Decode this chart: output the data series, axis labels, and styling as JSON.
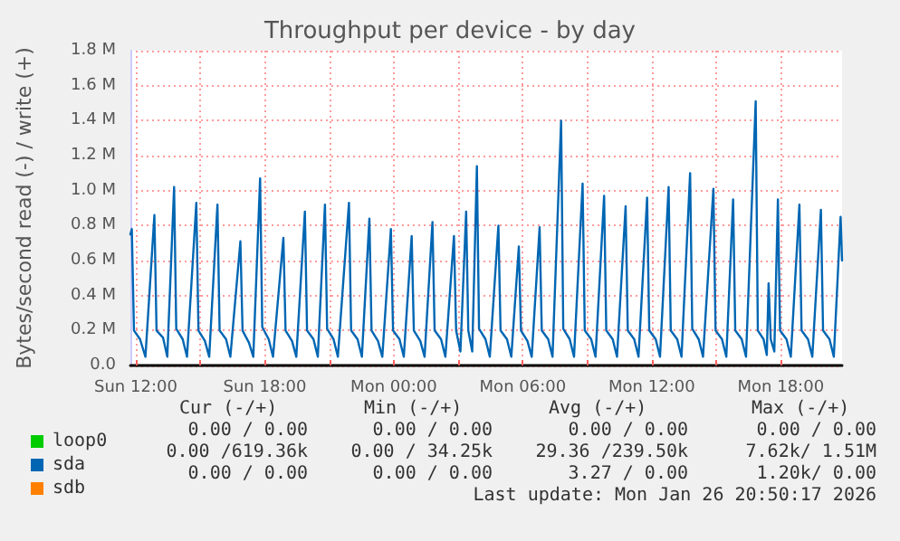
{
  "chart_data": {
    "type": "line",
    "title": "Throughput per device - by day",
    "ylabel": "Bytes/second read (-) / write (+)",
    "xlim": [
      "2026-01-25T11:45",
      "2026-01-26T20:51"
    ],
    "xticks": [
      {
        "value": "2026-01-25T12:00",
        "label": "Sun 12:00"
      },
      {
        "value": "2026-01-25T15:00",
        "label": null
      },
      {
        "value": "2026-01-25T18:00",
        "label": "Sun 18:00"
      },
      {
        "value": "2026-01-25T21:00",
        "label": null
      },
      {
        "value": "2026-01-26T00:00",
        "label": "Mon 00:00"
      },
      {
        "value": "2026-01-26T03:00",
        "label": null
      },
      {
        "value": "2026-01-26T06:00",
        "label": "Mon 06:00"
      },
      {
        "value": "2026-01-26T09:00",
        "label": null
      },
      {
        "value": "2026-01-26T12:00",
        "label": "Mon 12:00"
      },
      {
        "value": "2026-01-26T15:00",
        "label": null
      },
      {
        "value": "2026-01-26T18:00",
        "label": "Mon 18:00"
      }
    ],
    "ylim": [
      0,
      1800000
    ],
    "yticks": [
      {
        "value": 0,
        "label": "0.0"
      },
      {
        "value": 200000,
        "label": "0.2 M"
      },
      {
        "value": 400000,
        "label": "0.4 M"
      },
      {
        "value": 600000,
        "label": "0.6 M"
      },
      {
        "value": 800000,
        "label": "0.8 M"
      },
      {
        "value": 1000000,
        "label": "1.0 M"
      },
      {
        "value": 1200000,
        "label": "1.2 M"
      },
      {
        "value": 1400000,
        "label": "1.4 M"
      },
      {
        "value": 1600000,
        "label": "1.6 M"
      },
      {
        "value": 1800000,
        "label": "1.8 M"
      }
    ],
    "grid": true,
    "legend": "bottom",
    "marker": "none",
    "line_style": "solid",
    "series": [
      {
        "name": "loop0",
        "color": "#00cc00"
      },
      {
        "name": "sda",
        "color": "#0066b3",
        "x": [
          "2026-01-25T11:45",
          "2026-01-25T11:49",
          "2026-01-25T11:55",
          "2026-01-25T12:12",
          "2026-01-25T12:27",
          "2026-01-25T12:52",
          "2026-01-25T12:58",
          "2026-01-25T13:16",
          "2026-01-25T13:28",
          "2026-01-25T13:47",
          "2026-01-25T13:53",
          "2026-01-25T14:11",
          "2026-01-25T14:23",
          "2026-01-25T14:49",
          "2026-01-25T14:55",
          "2026-01-25T15:13",
          "2026-01-25T15:25",
          "2026-01-25T15:48",
          "2026-01-25T15:54",
          "2026-01-25T16:12",
          "2026-01-25T16:24",
          "2026-01-25T16:52",
          "2026-01-25T16:58",
          "2026-01-25T17:16",
          "2026-01-25T17:28",
          "2026-01-25T17:47",
          "2026-01-25T17:53",
          "2026-01-25T18:11",
          "2026-01-25T18:23",
          "2026-01-25T18:52",
          "2026-01-25T18:58",
          "2026-01-25T19:16",
          "2026-01-25T19:28",
          "2026-01-25T19:52",
          "2026-01-25T19:58",
          "2026-01-25T20:16",
          "2026-01-25T20:28",
          "2026-01-25T20:48",
          "2026-01-25T20:54",
          "2026-01-25T21:12",
          "2026-01-25T21:24",
          "2026-01-25T21:55",
          "2026-01-25T22:01",
          "2026-01-25T22:19",
          "2026-01-25T22:31",
          "2026-01-25T22:52",
          "2026-01-25T22:58",
          "2026-01-25T23:16",
          "2026-01-25T23:28",
          "2026-01-25T23:52",
          "2026-01-25T23:58",
          "2026-01-26T00:16",
          "2026-01-26T00:28",
          "2026-01-26T00:50",
          "2026-01-26T00:56",
          "2026-01-26T01:14",
          "2026-01-26T01:26",
          "2026-01-26T01:48",
          "2026-01-26T01:54",
          "2026-01-26T02:12",
          "2026-01-26T02:24",
          "2026-01-26T02:48",
          "2026-01-26T02:54",
          "2026-01-26T03:06",
          "2026-01-26T03:22",
          "2026-01-26T03:28",
          "2026-01-26T03:39",
          "2026-01-26T03:52",
          "2026-01-26T03:58",
          "2026-01-26T04:16",
          "2026-01-26T04:28",
          "2026-01-26T04:52",
          "2026-01-26T04:58",
          "2026-01-26T05:16",
          "2026-01-26T05:28",
          "2026-01-26T05:49",
          "2026-01-26T05:55",
          "2026-01-26T06:13",
          "2026-01-26T06:25",
          "2026-01-26T06:47",
          "2026-01-26T06:53",
          "2026-01-26T07:11",
          "2026-01-26T07:23",
          "2026-01-26T07:47",
          "2026-01-26T07:53",
          "2026-01-26T08:11",
          "2026-01-26T08:23",
          "2026-01-26T08:47",
          "2026-01-26T08:53",
          "2026-01-26T09:11",
          "2026-01-26T09:23",
          "2026-01-26T09:47",
          "2026-01-26T09:53",
          "2026-01-26T10:11",
          "2026-01-26T10:23",
          "2026-01-26T10:47",
          "2026-01-26T10:53",
          "2026-01-26T11:11",
          "2026-01-26T11:23",
          "2026-01-26T11:47",
          "2026-01-26T11:53",
          "2026-01-26T12:11",
          "2026-01-26T12:23",
          "2026-01-26T12:47",
          "2026-01-26T12:53",
          "2026-01-26T13:11",
          "2026-01-26T13:23",
          "2026-01-26T13:47",
          "2026-01-26T13:53",
          "2026-01-26T14:11",
          "2026-01-26T14:23",
          "2026-01-26T14:52",
          "2026-01-26T14:58",
          "2026-01-26T15:16",
          "2026-01-26T15:28",
          "2026-01-26T15:47",
          "2026-01-26T15:53",
          "2026-01-26T16:11",
          "2026-01-26T16:23",
          "2026-01-26T16:50",
          "2026-01-26T16:56",
          "2026-01-26T17:12",
          "2026-01-26T17:21",
          "2026-01-26T17:26",
          "2026-01-26T17:32",
          "2026-01-26T17:42",
          "2026-01-26T17:52",
          "2026-01-26T17:58",
          "2026-01-26T18:16",
          "2026-01-26T18:28",
          "2026-01-26T18:52",
          "2026-01-26T18:58",
          "2026-01-26T19:16",
          "2026-01-26T19:28",
          "2026-01-26T19:52",
          "2026-01-26T19:58",
          "2026-01-26T20:16",
          "2026-01-26T20:28",
          "2026-01-26T20:47",
          "2026-01-26T20:51"
        ],
        "values": [
          750000,
          780000,
          200000,
          150000,
          50000,
          860000,
          200000,
          160000,
          50000,
          1020000,
          210000,
          150000,
          50000,
          930000,
          200000,
          140000,
          50000,
          920000,
          200000,
          150000,
          50000,
          710000,
          200000,
          130000,
          50000,
          1070000,
          220000,
          150000,
          50000,
          730000,
          200000,
          140000,
          50000,
          880000,
          200000,
          150000,
          50000,
          920000,
          210000,
          150000,
          50000,
          930000,
          200000,
          150000,
          50000,
          840000,
          200000,
          140000,
          50000,
          780000,
          200000,
          150000,
          50000,
          740000,
          200000,
          140000,
          50000,
          820000,
          200000,
          150000,
          50000,
          740000,
          200000,
          80000,
          880000,
          200000,
          80000,
          1140000,
          210000,
          150000,
          50000,
          800000,
          200000,
          150000,
          50000,
          680000,
          200000,
          140000,
          50000,
          790000,
          200000,
          150000,
          50000,
          1400000,
          210000,
          150000,
          50000,
          1040000,
          200000,
          150000,
          50000,
          970000,
          200000,
          150000,
          50000,
          910000,
          200000,
          150000,
          50000,
          960000,
          200000,
          150000,
          50000,
          1020000,
          200000,
          150000,
          50000,
          1100000,
          210000,
          150000,
          50000,
          1010000,
          200000,
          150000,
          50000,
          950000,
          200000,
          150000,
          50000,
          1510000,
          200000,
          150000,
          60000,
          470000,
          150000,
          80000,
          950000,
          200000,
          150000,
          50000,
          920000,
          200000,
          150000,
          50000,
          890000,
          200000,
          150000,
          50000,
          850000,
          600000
        ]
      },
      {
        "name": "sdb",
        "color": "#ff8000"
      }
    ],
    "annotations": [
      "Cur (-/+)",
      "Min (-/+)",
      "Avg (-/+)",
      "Max (-/+)",
      "0.00 / 0.00",
      "0.00 / 0.00",
      "0.00 / 0.00",
      "0.00 / 0.00",
      "0.00 /619.36k",
      "0.00 / 34.25k",
      "29.36 /239.50k",
      "7.62k/ 1.51M",
      "0.00 / 0.00",
      "0.00 / 0.00",
      "3.27 / 0.00",
      "1.20k/ 0.00",
      "Last update: Mon Jan 26 20:50:17 2026"
    ]
  }
}
